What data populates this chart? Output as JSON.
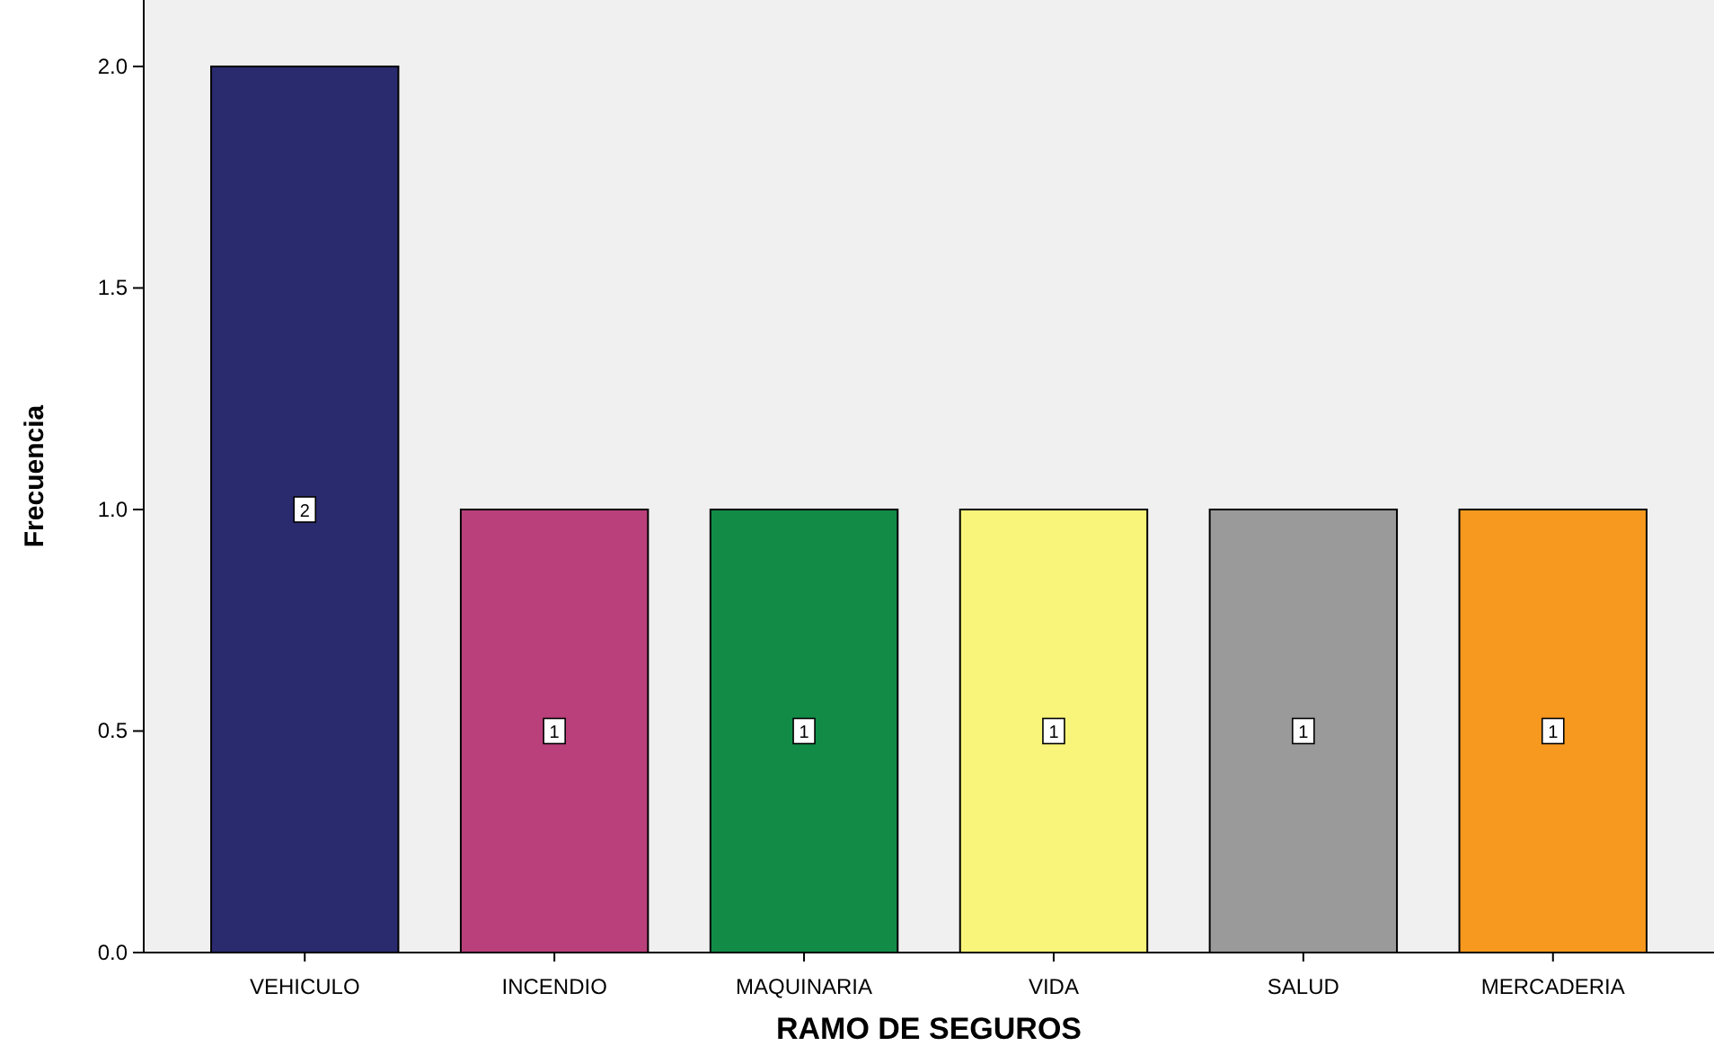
{
  "chart_data": {
    "type": "bar",
    "xlabel": "RAMO DE SEGUROS",
    "ylabel": "Frecuencia",
    "categories": [
      "VEHICULO",
      "INCENDIO",
      "MAQUINARIA",
      "VIDA",
      "SALUD",
      "MERCADERIA"
    ],
    "values": [
      2,
      1,
      1,
      1,
      1,
      1
    ],
    "colors": [
      "#2a2a6e",
      "#b9407b",
      "#128b47",
      "#f9f57a",
      "#9a9a9a",
      "#f7991f"
    ],
    "ylim": [
      0,
      2.15
    ],
    "yticks": [
      {
        "value": 0,
        "label": "0.0"
      },
      {
        "value": 0.5,
        "label": "0.5"
      },
      {
        "value": 1,
        "label": "1.0"
      },
      {
        "value": 1.5,
        "label": "1.5"
      },
      {
        "value": 2,
        "label": "2.0"
      }
    ],
    "data_labels": true
  }
}
